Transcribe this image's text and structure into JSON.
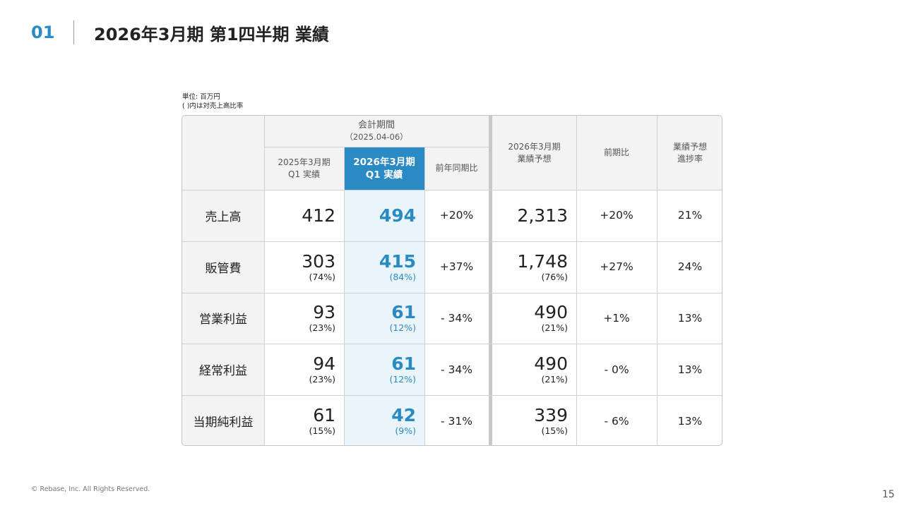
{
  "header": {
    "section_number": "01",
    "title": "2026年3月期 第1四半期 業績"
  },
  "notes": {
    "unit": "単位: 百万円",
    "ratio": "( )内は対売上高比率"
  },
  "table": {
    "period_header": "会計期間",
    "period_range": "（2025.04-06）",
    "columns": {
      "prev_q1_line1": "2025年3月期",
      "prev_q1_line2": "Q1 実績",
      "curr_q1_line1": "2026年3月期",
      "curr_q1_line2": "Q1 実績",
      "yoy": "前年同期比",
      "forecast_line1": "2026年3月期",
      "forecast_line2": "業績予想",
      "vs_prev": "前期比",
      "progress_line1": "業績予想",
      "progress_line2": "進捗率"
    },
    "rows": [
      {
        "label": "売上高",
        "prev": "412",
        "prev_ratio": "",
        "curr": "494",
        "curr_ratio": "",
        "yoy": "+20%",
        "forecast": "2,313",
        "forecast_ratio": "",
        "vs_prev": "+20%",
        "progress": "21%"
      },
      {
        "label": "販管費",
        "prev": "303",
        "prev_ratio": "(74%)",
        "curr": "415",
        "curr_ratio": "(84%)",
        "yoy": "+37%",
        "forecast": "1,748",
        "forecast_ratio": "(76%)",
        "vs_prev": "+27%",
        "progress": "24%"
      },
      {
        "label": "営業利益",
        "prev": "93",
        "prev_ratio": "(23%)",
        "curr": "61",
        "curr_ratio": "(12%)",
        "yoy": "- 34%",
        "forecast": "490",
        "forecast_ratio": "(21%)",
        "vs_prev": "+1%",
        "progress": "13%"
      },
      {
        "label": "経常利益",
        "prev": "94",
        "prev_ratio": "(23%)",
        "curr": "61",
        "curr_ratio": "(12%)",
        "yoy": "- 34%",
        "forecast": "490",
        "forecast_ratio": "(21%)",
        "vs_prev": "- 0%",
        "progress": "13%"
      },
      {
        "label": "当期純利益",
        "prev": "61",
        "prev_ratio": "(15%)",
        "curr": "42",
        "curr_ratio": "(9%)",
        "yoy": "- 31%",
        "forecast": "339",
        "forecast_ratio": "(15%)",
        "vs_prev": "- 6%",
        "progress": "13%"
      }
    ]
  },
  "footer": {
    "copyright": "© Rebase, Inc. All Rights Reserved.",
    "page_number": "15"
  },
  "colors": {
    "accent": "#2a8ac4",
    "highlight_bg": "#eaf4fb",
    "header_bg": "#f3f3f3"
  }
}
